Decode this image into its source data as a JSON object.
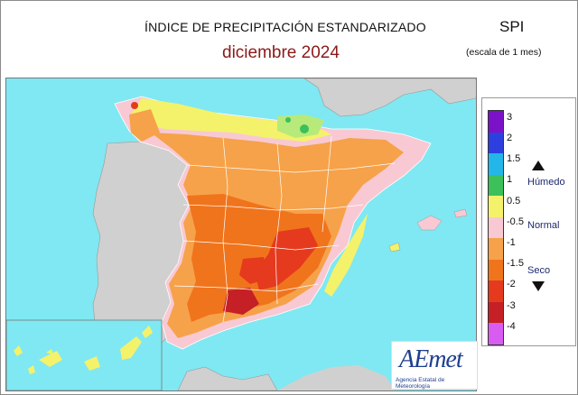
{
  "header": {
    "title": "ÍNDICE DE PRECIPITACIÓN ESTANDARIZADO",
    "subtitle": "diciembre  2024",
    "index_name": "SPI",
    "scale_note": "(escala de 1 mes)"
  },
  "legend": {
    "ticks": [
      "3",
      "2",
      "1.5",
      "1",
      "0.5",
      "-0.5",
      "-1",
      "-1.5",
      "-2",
      "-3",
      "-4"
    ],
    "categories": {
      "wet": "Húmedo",
      "normal": "Normal",
      "dry": "Seco"
    },
    "colors": [
      "#7b12c8",
      "#2e3fe0",
      "#22b7e8",
      "#3cc05a",
      "#f4f26a",
      "#f9c9d3",
      "#f6a24a",
      "#f0741c",
      "#e53a1e",
      "#c42026",
      "#d85cf0"
    ]
  },
  "map": {
    "sea_color": "#7fe8f2",
    "land_outside_color": "#d0d0d0"
  },
  "logo": {
    "name": "AEmet",
    "tagline": "Agencia Estatal de Meteorología"
  }
}
